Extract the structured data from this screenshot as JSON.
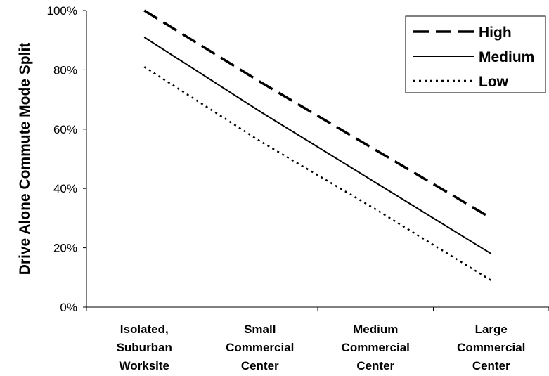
{
  "chart_data": {
    "type": "line",
    "title": "",
    "xlabel": "",
    "ylabel": "Drive Alone Commute Mode Split",
    "categories": [
      [
        "Isolated,",
        "Suburban",
        "Worksite"
      ],
      [
        "Small",
        "Commercial",
        "Center"
      ],
      [
        "Medium",
        "Commercial",
        "Center"
      ],
      [
        "Large",
        "Commercial",
        "Center"
      ]
    ],
    "ylim": [
      0,
      100
    ],
    "yticks": [
      "0%",
      "20%",
      "40%",
      "60%",
      "80%",
      "100%"
    ],
    "grid": false,
    "legend_position": "top-right",
    "series": [
      {
        "name": "High",
        "values": [
          100,
          76,
          53,
          30
        ],
        "style": "dashed",
        "color": "#000000"
      },
      {
        "name": "Medium",
        "values": [
          91,
          66,
          42,
          18
        ],
        "style": "solid",
        "color": "#000000"
      },
      {
        "name": "Low",
        "values": [
          81,
          56,
          33,
          9
        ],
        "style": "dotted",
        "color": "#000000"
      }
    ]
  }
}
